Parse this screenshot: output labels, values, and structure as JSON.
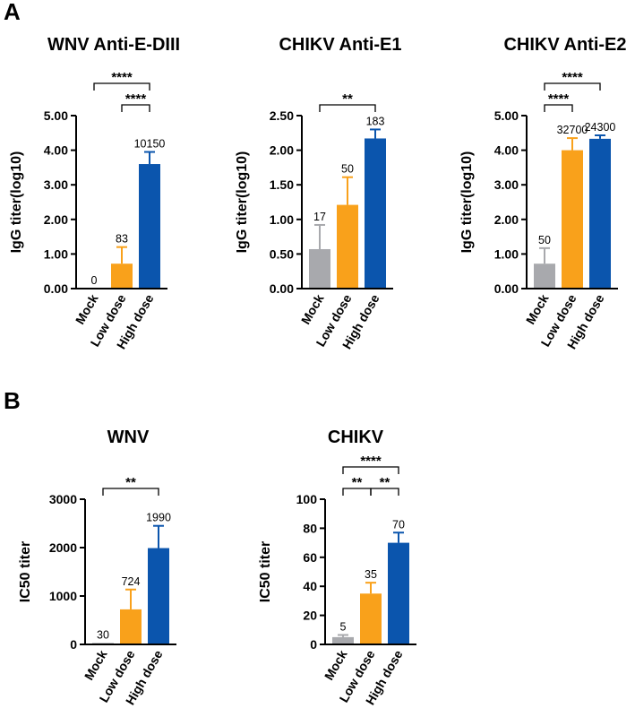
{
  "panels": [
    {
      "label": "A"
    },
    {
      "label": "B"
    }
  ],
  "colors": {
    "mock": "#a8a9ad",
    "low": "#f9a11b",
    "high": "#0b55ad"
  },
  "chart_data": [
    {
      "type": "bar",
      "panel": "A",
      "title": "WNV Anti-E-DIII",
      "ylabel": "IgG titer(log10)",
      "ylim": [
        0,
        5
      ],
      "yticks": [
        "0.00",
        "1.00",
        "2.00",
        "3.00",
        "4.00",
        "5.00"
      ],
      "categories": [
        "Mock",
        "Low dose",
        "High dose"
      ],
      "values": [
        0,
        0.72,
        3.6
      ],
      "errors": [
        0,
        0.48,
        0.35
      ],
      "data_labels": [
        "0",
        "83",
        "10150"
      ],
      "significance": [
        {
          "from": 0,
          "to": 2,
          "label": "****",
          "level": 1
        },
        {
          "from": 1,
          "to": 2,
          "label": "****",
          "level": 0
        }
      ]
    },
    {
      "type": "bar",
      "panel": "A",
      "title": "CHIKV Anti-E1",
      "ylabel": "IgG titer(log10)",
      "ylim": [
        0,
        2.5
      ],
      "yticks": [
        "0.00",
        "0.50",
        "1.00",
        "1.50",
        "2.00",
        "2.50"
      ],
      "categories": [
        "Mock",
        "Low dose",
        "High dose"
      ],
      "values": [
        0.57,
        1.21,
        2.17
      ],
      "errors": [
        0.35,
        0.4,
        0.13
      ],
      "data_labels": [
        "17",
        "50",
        "183"
      ],
      "significance": [
        {
          "from": 0,
          "to": 2,
          "label": "**",
          "level": 0
        }
      ]
    },
    {
      "type": "bar",
      "panel": "A",
      "title": "CHIKV Anti-E2",
      "ylabel": "IgG titer(log10)",
      "ylim": [
        0,
        5
      ],
      "yticks": [
        "0.00",
        "1.00",
        "2.00",
        "3.00",
        "4.00",
        "5.00"
      ],
      "categories": [
        "Mock",
        "Low dose",
        "High dose"
      ],
      "values": [
        0.72,
        4.0,
        4.33
      ],
      "errors": [
        0.45,
        0.35,
        0.1
      ],
      "data_labels": [
        "50",
        "32700",
        "24300"
      ],
      "significance": [
        {
          "from": 0,
          "to": 2,
          "label": "****",
          "level": 1
        },
        {
          "from": 0,
          "to": 1,
          "label": "****",
          "level": 0
        }
      ]
    },
    {
      "type": "bar",
      "panel": "B",
      "title": "WNV",
      "ylabel": "IC50 titer",
      "ylim": [
        0,
        3000
      ],
      "yticks": [
        "0",
        "1000",
        "2000",
        "3000"
      ],
      "categories": [
        "Mock",
        "Low dose",
        "High dose"
      ],
      "values": [
        30,
        724,
        1990
      ],
      "errors": [
        0,
        410,
        460
      ],
      "data_labels": [
        "30",
        "724",
        "1990"
      ],
      "significance": [
        {
          "from": 0,
          "to": 2,
          "label": "**",
          "level": 0
        }
      ]
    },
    {
      "type": "bar",
      "panel": "B",
      "title": "CHIKV",
      "ylabel": "IC50 titer",
      "ylim": [
        0,
        100
      ],
      "yticks": [
        "0",
        "20",
        "40",
        "60",
        "80",
        "100"
      ],
      "categories": [
        "Mock",
        "Low dose",
        "High dose"
      ],
      "values": [
        5,
        35,
        70
      ],
      "errors": [
        1.5,
        7.5,
        7
      ],
      "data_labels": [
        "5",
        "35",
        "70"
      ],
      "significance": [
        {
          "from": 0,
          "to": 2,
          "label": "****",
          "level": 1
        },
        {
          "from": 0,
          "to": 1,
          "label": "**",
          "level": 0
        },
        {
          "from": 1,
          "to": 2,
          "label": "**",
          "level": 0
        }
      ]
    }
  ]
}
